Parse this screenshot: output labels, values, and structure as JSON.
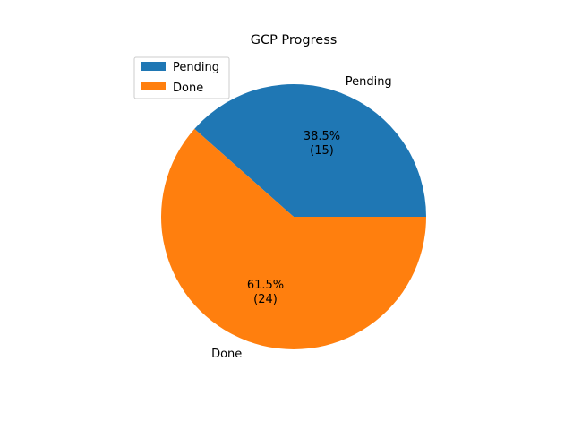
{
  "chart_data": {
    "type": "pie",
    "title": "GCP Progress",
    "slices": [
      {
        "label": "Pending",
        "value": 15,
        "percent_label": "38.5%",
        "count_label": "(15)",
        "color": "#1f77b4"
      },
      {
        "label": "Done",
        "value": 24,
        "percent_label": "61.5%",
        "count_label": "(24)",
        "color": "#ff7f0e"
      }
    ],
    "start_angle_deg": 0,
    "direction": "counterclockwise",
    "legend": {
      "placement": "upper-left",
      "entries": [
        "Pending",
        "Done"
      ]
    }
  }
}
